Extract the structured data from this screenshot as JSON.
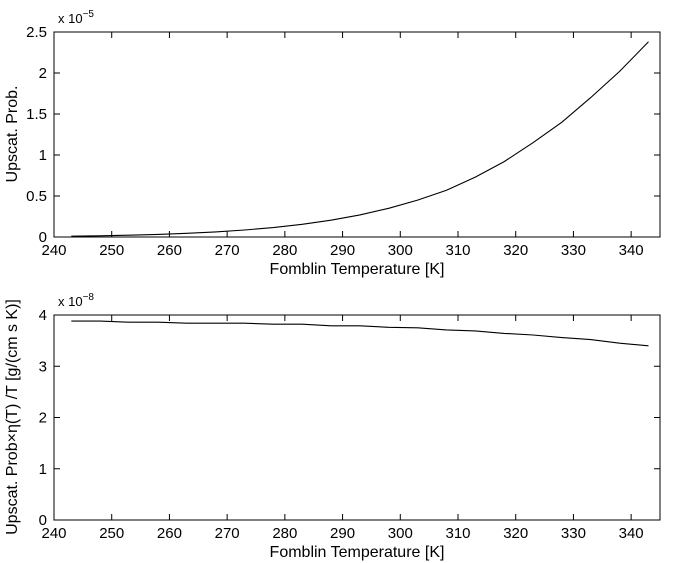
{
  "chart_data": [
    {
      "type": "line",
      "xlabel": "Fomblin Temperature [K]",
      "ylabel": "Upscat. Prob.",
      "y_multiplier": {
        "base": "x 10",
        "exponent": "−5"
      },
      "xlim": [
        240,
        345
      ],
      "ylim": [
        0,
        2.5
      ],
      "xticks": [
        "240",
        "250",
        "260",
        "270",
        "280",
        "290",
        "300",
        "310",
        "320",
        "330",
        "340"
      ],
      "yticks": [
        "0",
        "0.5",
        "1",
        "1.5",
        "2",
        "2.5"
      ],
      "grid": false,
      "series": [
        {
          "x": [
            243,
            248,
            253,
            258,
            263,
            268,
            273,
            278,
            283,
            288,
            293,
            298,
            303,
            308,
            313,
            318,
            323,
            328,
            333,
            338,
            343
          ],
          "y": [
            0.01,
            0.015,
            0.022,
            0.032,
            0.045,
            0.062,
            0.085,
            0.115,
            0.155,
            0.205,
            0.27,
            0.35,
            0.45,
            0.57,
            0.73,
            0.92,
            1.15,
            1.4,
            1.7,
            2.02,
            2.38
          ]
        }
      ]
    },
    {
      "type": "line",
      "xlabel": "Fomblin Temperature [K]",
      "ylabel": "Upscat. Prob×η(T) /T [g/(cm s K)]",
      "y_multiplier": {
        "base": "x 10",
        "exponent": "−8"
      },
      "xlim": [
        240,
        345
      ],
      "ylim": [
        0,
        4
      ],
      "xticks": [
        "240",
        "250",
        "260",
        "270",
        "280",
        "290",
        "300",
        "310",
        "320",
        "330",
        "340"
      ],
      "yticks": [
        "0",
        "1",
        "2",
        "3",
        "4"
      ],
      "grid": false,
      "series": [
        {
          "x": [
            243,
            248,
            253,
            258,
            263,
            268,
            273,
            278,
            283,
            288,
            293,
            298,
            303,
            308,
            313,
            318,
            323,
            328,
            333,
            338,
            343
          ],
          "y": [
            3.88,
            3.88,
            3.86,
            3.86,
            3.84,
            3.84,
            3.84,
            3.82,
            3.82,
            3.79,
            3.79,
            3.76,
            3.75,
            3.71,
            3.69,
            3.64,
            3.61,
            3.56,
            3.52,
            3.45,
            3.4
          ]
        }
      ]
    }
  ]
}
